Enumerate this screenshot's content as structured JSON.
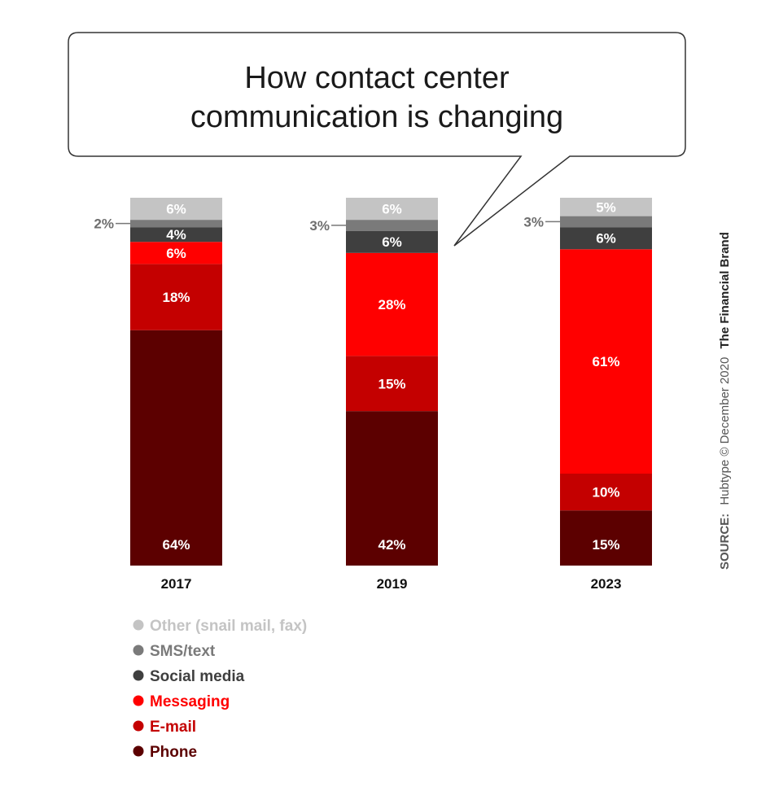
{
  "chart_data": {
    "type": "bar",
    "stacked": true,
    "title": "How contact center communication is changing",
    "title_lines": [
      "How contact center",
      "communication is changing"
    ],
    "categories": [
      "2017",
      "2019",
      "2023"
    ],
    "series": [
      {
        "name": "Phone",
        "values": [
          64,
          42,
          15
        ],
        "color": "#5c0000"
      },
      {
        "name": "E-mail",
        "values": [
          18,
          15,
          10
        ],
        "color": "#c40000"
      },
      {
        "name": "Messaging",
        "values": [
          6,
          28,
          61
        ],
        "color": "#ff0000"
      },
      {
        "name": "Social media",
        "values": [
          4,
          6,
          6
        ],
        "color": "#3f3f3f"
      },
      {
        "name": "SMS/text",
        "values": [
          2,
          3,
          3
        ],
        "color": "#7a7a7a"
      },
      {
        "name": "Other (snail mail, fax)",
        "values": [
          6,
          6,
          5
        ],
        "color": "#c4c4c4"
      }
    ],
    "legend_order": [
      "Other (snail mail, fax)",
      "SMS/text",
      "Social media",
      "Messaging",
      "E-mail",
      "Phone"
    ],
    "legend_placement": "bottom-left",
    "grid": false,
    "source": {
      "prefix": "SOURCE:",
      "text": "Hubtype © December 2020",
      "brand": "The Financial Brand"
    }
  }
}
